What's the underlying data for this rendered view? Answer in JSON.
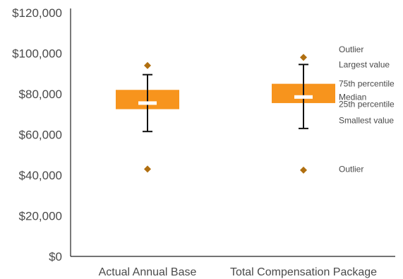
{
  "chart_data": {
    "type": "box",
    "ylim": [
      0,
      120000
    ],
    "y_ticks": [
      {
        "value": 0,
        "label": "$0"
      },
      {
        "value": 20000,
        "label": "$20,000"
      },
      {
        "value": 40000,
        "label": "$40,000"
      },
      {
        "value": 60000,
        "label": "$60,000"
      },
      {
        "value": 80000,
        "label": "$80,000"
      },
      {
        "value": 100000,
        "label": "$100,000"
      },
      {
        "value": 120000,
        "label": "$120,000"
      }
    ],
    "categories": [
      "Actual Annual Base",
      "Total Compensation Package"
    ],
    "boxes": [
      {
        "category": "Actual Annual Base",
        "q1": 72500,
        "median": 75500,
        "q3": 82000,
        "whisker_low": 61500,
        "whisker_high": 89500,
        "outliers": [
          94000,
          43000
        ]
      },
      {
        "category": "Total Compensation Package",
        "q1": 75500,
        "median": 78500,
        "q3": 85000,
        "whisker_low": 63000,
        "whisker_high": 94500,
        "outliers": [
          98000,
          42500
        ]
      }
    ],
    "annotations": [
      {
        "text": "Outlier",
        "value": 102000
      },
      {
        "text": "Largest value",
        "value": 94500
      },
      {
        "text": "75th percentile",
        "value": 85000
      },
      {
        "text": "Median",
        "value": 78500
      },
      {
        "text": "25th percentile",
        "value": 75000
      },
      {
        "text": "Smallest value",
        "value": 67000
      },
      {
        "text": "Outlier",
        "value": 43000
      }
    ],
    "colors": {
      "box": "#f7941d",
      "median": "#ffffff",
      "outlier": "#b06f10",
      "whisker": "#111111",
      "axis": "#222222",
      "text": "#4a4a4a"
    }
  }
}
